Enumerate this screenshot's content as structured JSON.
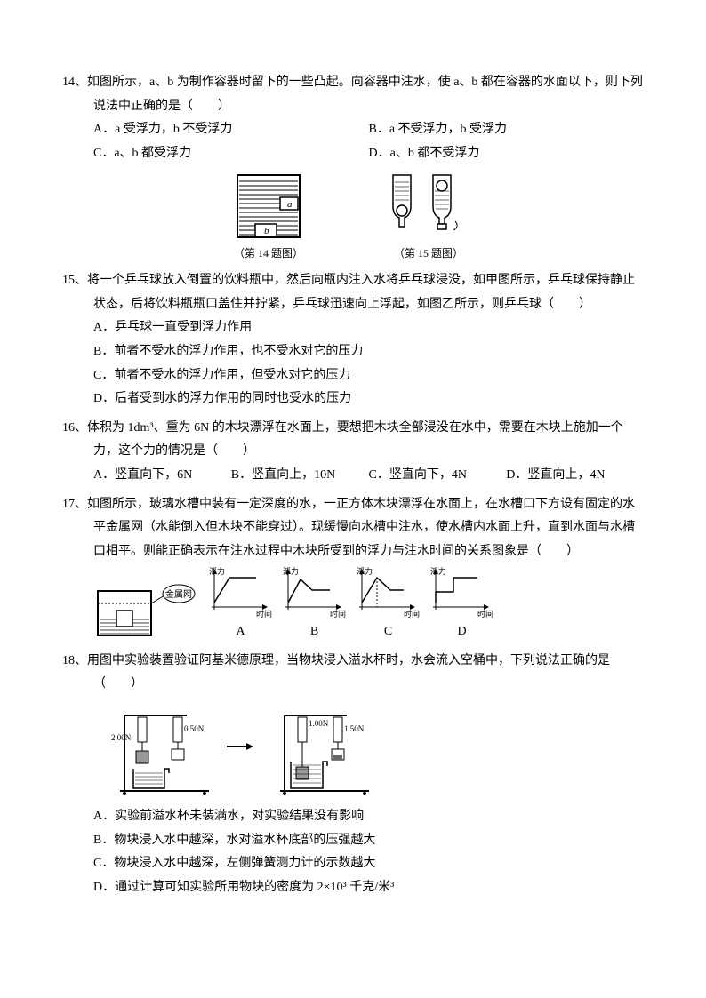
{
  "q14": {
    "num": "14、",
    "stem": "如图所示，a、b 为制作容器时留下的一些凸起。向容器中注水，使 a、b 都在容器的水面以下，则下列说法中正确的是（　　）",
    "optA": "A．a 受浮力，b 不受浮力",
    "optB": "B．a 不受浮力，b 受浮力",
    "optC": "C．a、b 都受浮力",
    "optD": "D．a、b 都不受浮力",
    "caption1": "（第 14 题图）",
    "caption2": "（第 15 题图）",
    "label_a": "a",
    "label_b": "b"
  },
  "q15": {
    "num": "15、",
    "stem": "将一个乒乓球放入倒置的饮料瓶中，然后向瓶内注入水将乒乓球浸没，如甲图所示，乒乓球保持静止状态，后将饮料瓶瓶口盖住并拧紧，乒乓球迅速向上浮起，如图乙所示，则乒乓球（　　）",
    "optA": "A．乒乓球一直受到浮力作用",
    "optB": "B．前者不受水的浮力作用，也不受水对它的压力",
    "optC": "C．前者不受水的浮力作用，但受水对它的压力",
    "optD": "D．后者受到水的浮力作用的同时也受水的压力"
  },
  "q16": {
    "num": "16、",
    "stem": "体积为 1dm³、重为 6N 的木块漂浮在水面上，要想把木块全部浸没在水中，需要在木块上施加一个力，这个力的情况是（　　）",
    "optA": "A．竖直向下，6N",
    "optB": "B．竖直向上，10N",
    "optC": "C．竖直向下，4N",
    "optD": "D．竖直向上，4N"
  },
  "q17": {
    "num": "17、",
    "stem": "如图所示，玻璃水槽中装有一定深度的水，一正方体木块漂浮在水面上，在水槽口下方设有固定的水平金属网（水能倒入但木块不能穿过）。现缓慢向水槽中注水，使水槽内水面上升，直到水面与水槽口相平。则能正确表示在注水过程中木块所受到的浮力与注水时间的关系图象是（　　）",
    "labelA": "A",
    "labelB": "B",
    "labelC": "C",
    "labelD": "D",
    "ylabel": "浮力",
    "xlabel": "时间",
    "mesh_label": "金属网",
    "charts": {
      "A": {
        "points": [
          [
            8,
            40
          ],
          [
            25,
            12
          ],
          [
            55,
            12
          ]
        ],
        "dash": null
      },
      "B": {
        "points": [
          [
            8,
            40
          ],
          [
            22,
            14
          ],
          [
            35,
            26
          ],
          [
            55,
            26
          ]
        ],
        "dash": null
      },
      "C": {
        "points": [
          [
            8,
            40
          ],
          [
            25,
            12
          ],
          [
            40,
            26
          ],
          [
            55,
            26
          ]
        ],
        "dash": [
          [
            25,
            12
          ],
          [
            25,
            45
          ]
        ]
      },
      "D": {
        "points": [
          [
            8,
            40
          ],
          [
            8,
            28
          ],
          [
            28,
            28
          ],
          [
            28,
            12
          ],
          [
            55,
            12
          ]
        ],
        "dash": null
      }
    },
    "axis_color": "#000000",
    "line_color": "#000000"
  },
  "q18": {
    "num": "18、",
    "stem": "用图中实验装置验证阿基米德原理，当物块浸入溢水杯时，水会流入空桶中，下列说法正确的是（　　）",
    "optA": "A．实验前溢水杯未装满水，对实验结果没有影响",
    "optB": "B．物块浸入水中越深，水对溢水杯底部的压强越大",
    "optC": "C．物块浸入水中越深，左侧弹簧测力计的示数越大",
    "optD": "D．通过计算可知实验所用物块的密度为 2×10³ 千克/米³",
    "reading1": "2.00N",
    "reading2": "0.50N",
    "reading3": "1.00N",
    "reading4": "1.50N"
  }
}
